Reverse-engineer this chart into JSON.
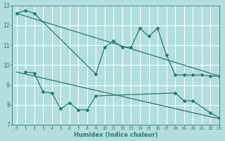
{
  "color": "#2a7a6e",
  "bg_color": "#b2dede",
  "grid_color": "#ffffff",
  "xlabel": "Humidex (Indice chaleur)",
  "ylim": [
    7,
    13
  ],
  "xlim": [
    -0.5,
    23
  ],
  "yticks": [
    7,
    8,
    9,
    10,
    11,
    12,
    13
  ],
  "xticks": [
    0,
    1,
    2,
    3,
    4,
    5,
    6,
    7,
    8,
    9,
    10,
    11,
    12,
    13,
    14,
    15,
    16,
    17,
    18,
    19,
    20,
    21,
    22,
    23
  ],
  "curve1_x": [
    0,
    1,
    2,
    9,
    10,
    11,
    12,
    13,
    14,
    15,
    16,
    17,
    18,
    19,
    20,
    21,
    22,
    23
  ],
  "curve1_y": [
    12.6,
    12.75,
    12.6,
    9.55,
    10.9,
    11.2,
    10.9,
    10.9,
    11.85,
    11.45,
    11.85,
    10.5,
    9.5,
    9.5,
    9.5,
    9.5,
    9.45,
    9.45
  ],
  "curve2_x": [
    1,
    2,
    3,
    4,
    5,
    6,
    7,
    8,
    9,
    18,
    19,
    20,
    22,
    23
  ],
  "curve2_y": [
    9.65,
    9.6,
    8.65,
    8.6,
    7.8,
    8.1,
    7.75,
    7.75,
    8.45,
    8.6,
    8.2,
    8.2,
    7.6,
    7.35
  ],
  "trend1_x": [
    0,
    23
  ],
  "trend1_y": [
    12.6,
    9.45
  ],
  "trend2_x": [
    0,
    23
  ],
  "trend2_y": [
    9.65,
    7.3
  ]
}
